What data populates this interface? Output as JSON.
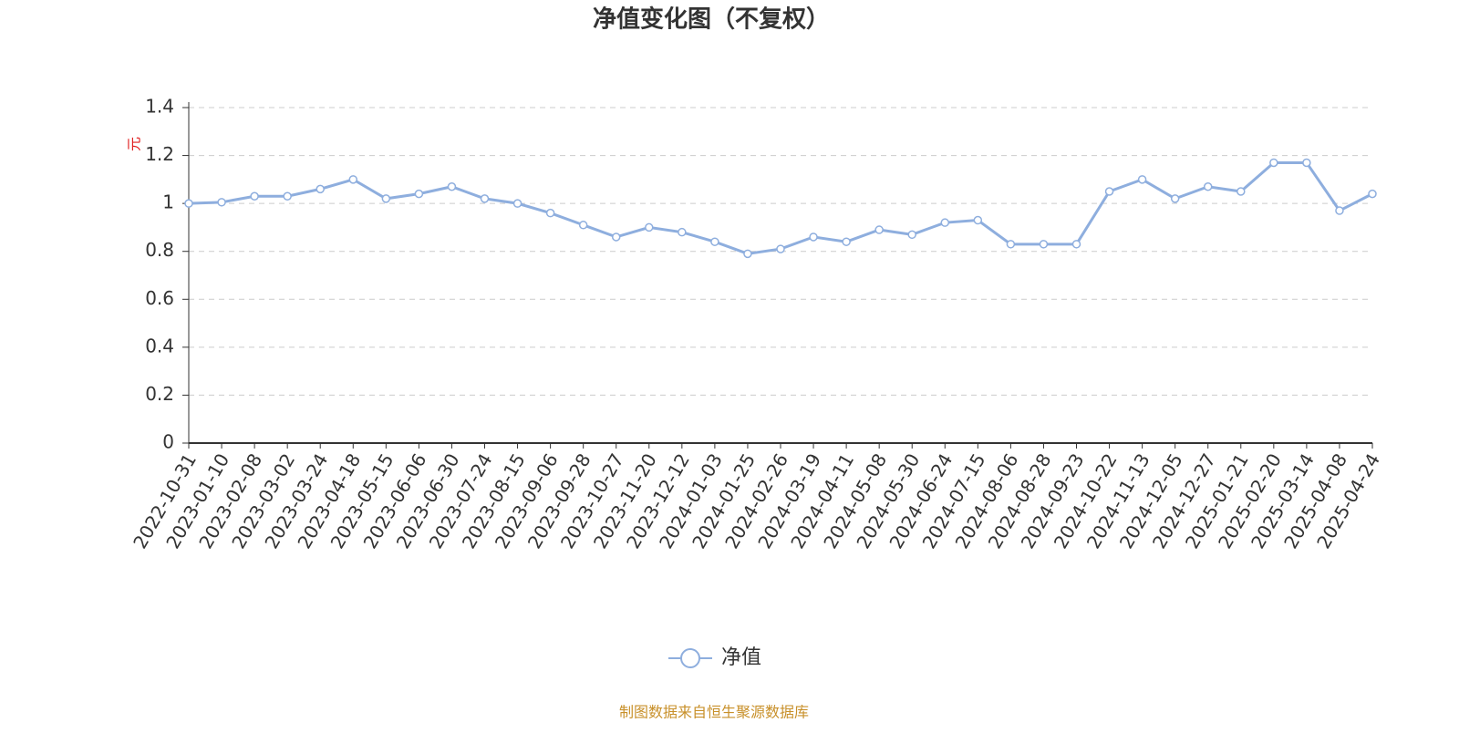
{
  "chart_data": {
    "type": "line",
    "title": "净值变化图（不复权）",
    "y_label": "元",
    "categories": [
      "2022-10-31",
      "2023-01-10",
      "2023-02-08",
      "2023-03-02",
      "2023-03-24",
      "2023-04-18",
      "2023-05-15",
      "2023-06-06",
      "2023-06-30",
      "2023-07-24",
      "2023-08-15",
      "2023-09-06",
      "2023-09-28",
      "2023-10-27",
      "2023-11-20",
      "2023-12-12",
      "2024-01-03",
      "2024-01-25",
      "2024-02-26",
      "2024-03-19",
      "2024-04-11",
      "2024-05-08",
      "2024-05-30",
      "2024-06-24",
      "2024-07-15",
      "2024-08-06",
      "2024-08-28",
      "2024-09-23",
      "2024-10-22",
      "2024-11-13",
      "2024-12-05",
      "2024-12-27",
      "2025-01-21",
      "2025-02-20",
      "2025-03-14",
      "2025-04-08",
      "2025-04-24"
    ],
    "series": [
      {
        "name": "净值",
        "color": "#8eaede",
        "values": [
          1.0,
          1.005,
          1.03,
          1.03,
          1.06,
          1.1,
          1.02,
          1.04,
          1.07,
          1.02,
          1.0,
          0.96,
          0.91,
          0.86,
          0.9,
          0.88,
          0.84,
          0.79,
          0.81,
          0.86,
          0.84,
          0.89,
          0.87,
          0.92,
          0.93,
          0.83,
          0.83,
          0.83,
          1.05,
          1.1,
          1.02,
          1.07,
          1.05,
          1.17,
          1.17,
          0.97,
          1.04
        ]
      }
    ],
    "ylim": [
      0,
      1.4
    ],
    "yticks": [
      0,
      0.2,
      0.4,
      0.6,
      0.8,
      1,
      1.2,
      1.4
    ],
    "grid": true,
    "legend": "bottom",
    "source": "制图数据来自恒生聚源数据库"
  }
}
